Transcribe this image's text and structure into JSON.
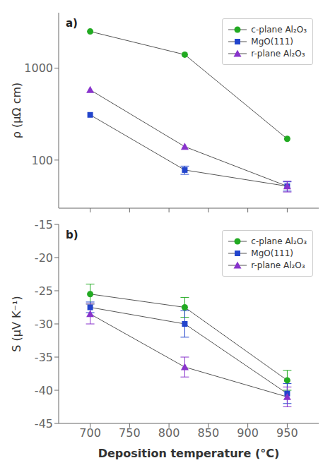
{
  "chart_data": [
    {
      "type": "line",
      "annotation": "a)",
      "x": [
        700,
        820,
        950
      ],
      "xlim": [
        660,
        990
      ],
      "xticks": [
        700,
        750,
        800,
        850,
        900,
        950
      ],
      "ylim": [
        30,
        4000
      ],
      "yticks": [
        100,
        1000
      ],
      "log": "y",
      "ylabel": "ρ (μΩ cm)",
      "tick_labels": "y",
      "legend": "upper right",
      "color": "#555555",
      "series": [
        {
          "name": "c-plane Al₂O₃",
          "color": "#22aa22",
          "marker": "circle",
          "values": [
            2500,
            1400,
            170
          ],
          "errors": [
            0,
            0,
            0
          ]
        },
        {
          "name": "MgO(111)",
          "color": "#2244cc",
          "marker": "square",
          "values": [
            310,
            78,
            52
          ],
          "errors": [
            0,
            8,
            6
          ]
        },
        {
          "name": "r-plane Al₂O₃",
          "color": "#8833cc",
          "marker": "triangle",
          "values": [
            580,
            140,
            52
          ],
          "errors": [
            0,
            0,
            7
          ]
        }
      ]
    },
    {
      "type": "line",
      "annotation": "b)",
      "x": [
        700,
        820,
        950
      ],
      "xlim": [
        660,
        990
      ],
      "xticks": [
        700,
        750,
        800,
        850,
        900,
        950
      ],
      "ylim": [
        -45,
        -15
      ],
      "yticks": [
        -45,
        -40,
        -35,
        -30,
        -25,
        -20,
        -15
      ],
      "xlabel": "Deposition temperature (°C)",
      "ylabel": "S (μV K⁻¹)",
      "legend": "upper right",
      "color": "#555555",
      "series": [
        {
          "name": "c-plane Al₂O₃",
          "color": "#22aa22",
          "marker": "circle",
          "values": [
            -25.5,
            -27.5,
            -38.5
          ],
          "errors": [
            1.5,
            1.5,
            1.5
          ]
        },
        {
          "name": "MgO(111)",
          "color": "#2244cc",
          "marker": "square",
          "values": [
            -27.5,
            -30.0,
            -40.5
          ],
          "errors": [
            0.8,
            2.0,
            1.5
          ]
        },
        {
          "name": "r-plane Al₂O₃",
          "color": "#8833cc",
          "marker": "triangle",
          "values": [
            -28.5,
            -36.5,
            -41.0
          ],
          "errors": [
            1.5,
            1.5,
            1.5
          ]
        }
      ]
    }
  ]
}
